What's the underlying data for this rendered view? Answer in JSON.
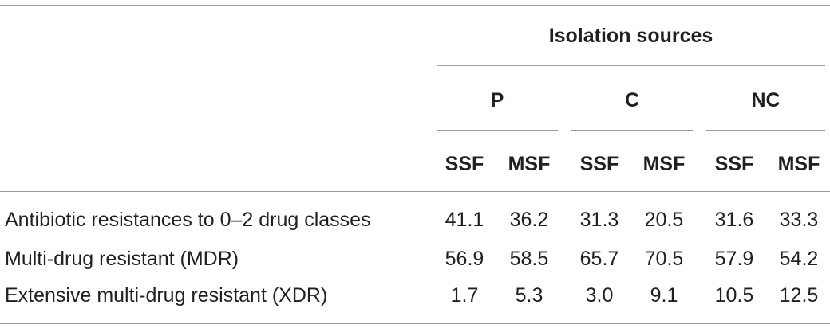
{
  "table": {
    "spanner": "Isolation sources",
    "groups": [
      "P",
      "C",
      "NC"
    ],
    "subheaders": [
      "SSF",
      "MSF",
      "SSF",
      "MSF",
      "SSF",
      "MSF"
    ],
    "rows": [
      {
        "label": "Antibiotic resistances to 0–2 drug classes",
        "values": [
          "41.1",
          "36.2",
          "31.3",
          "20.5",
          "31.6",
          "33.3"
        ]
      },
      {
        "label": "Multi-drug resistant (MDR)",
        "values": [
          "56.9",
          "58.5",
          "65.7",
          "70.5",
          "57.9",
          "54.2"
        ]
      },
      {
        "label": "Extensive multi-drug resistant (XDR)",
        "values": [
          "1.7",
          "5.3",
          "3.0",
          "9.1",
          "10.5",
          "12.5"
        ]
      }
    ]
  }
}
